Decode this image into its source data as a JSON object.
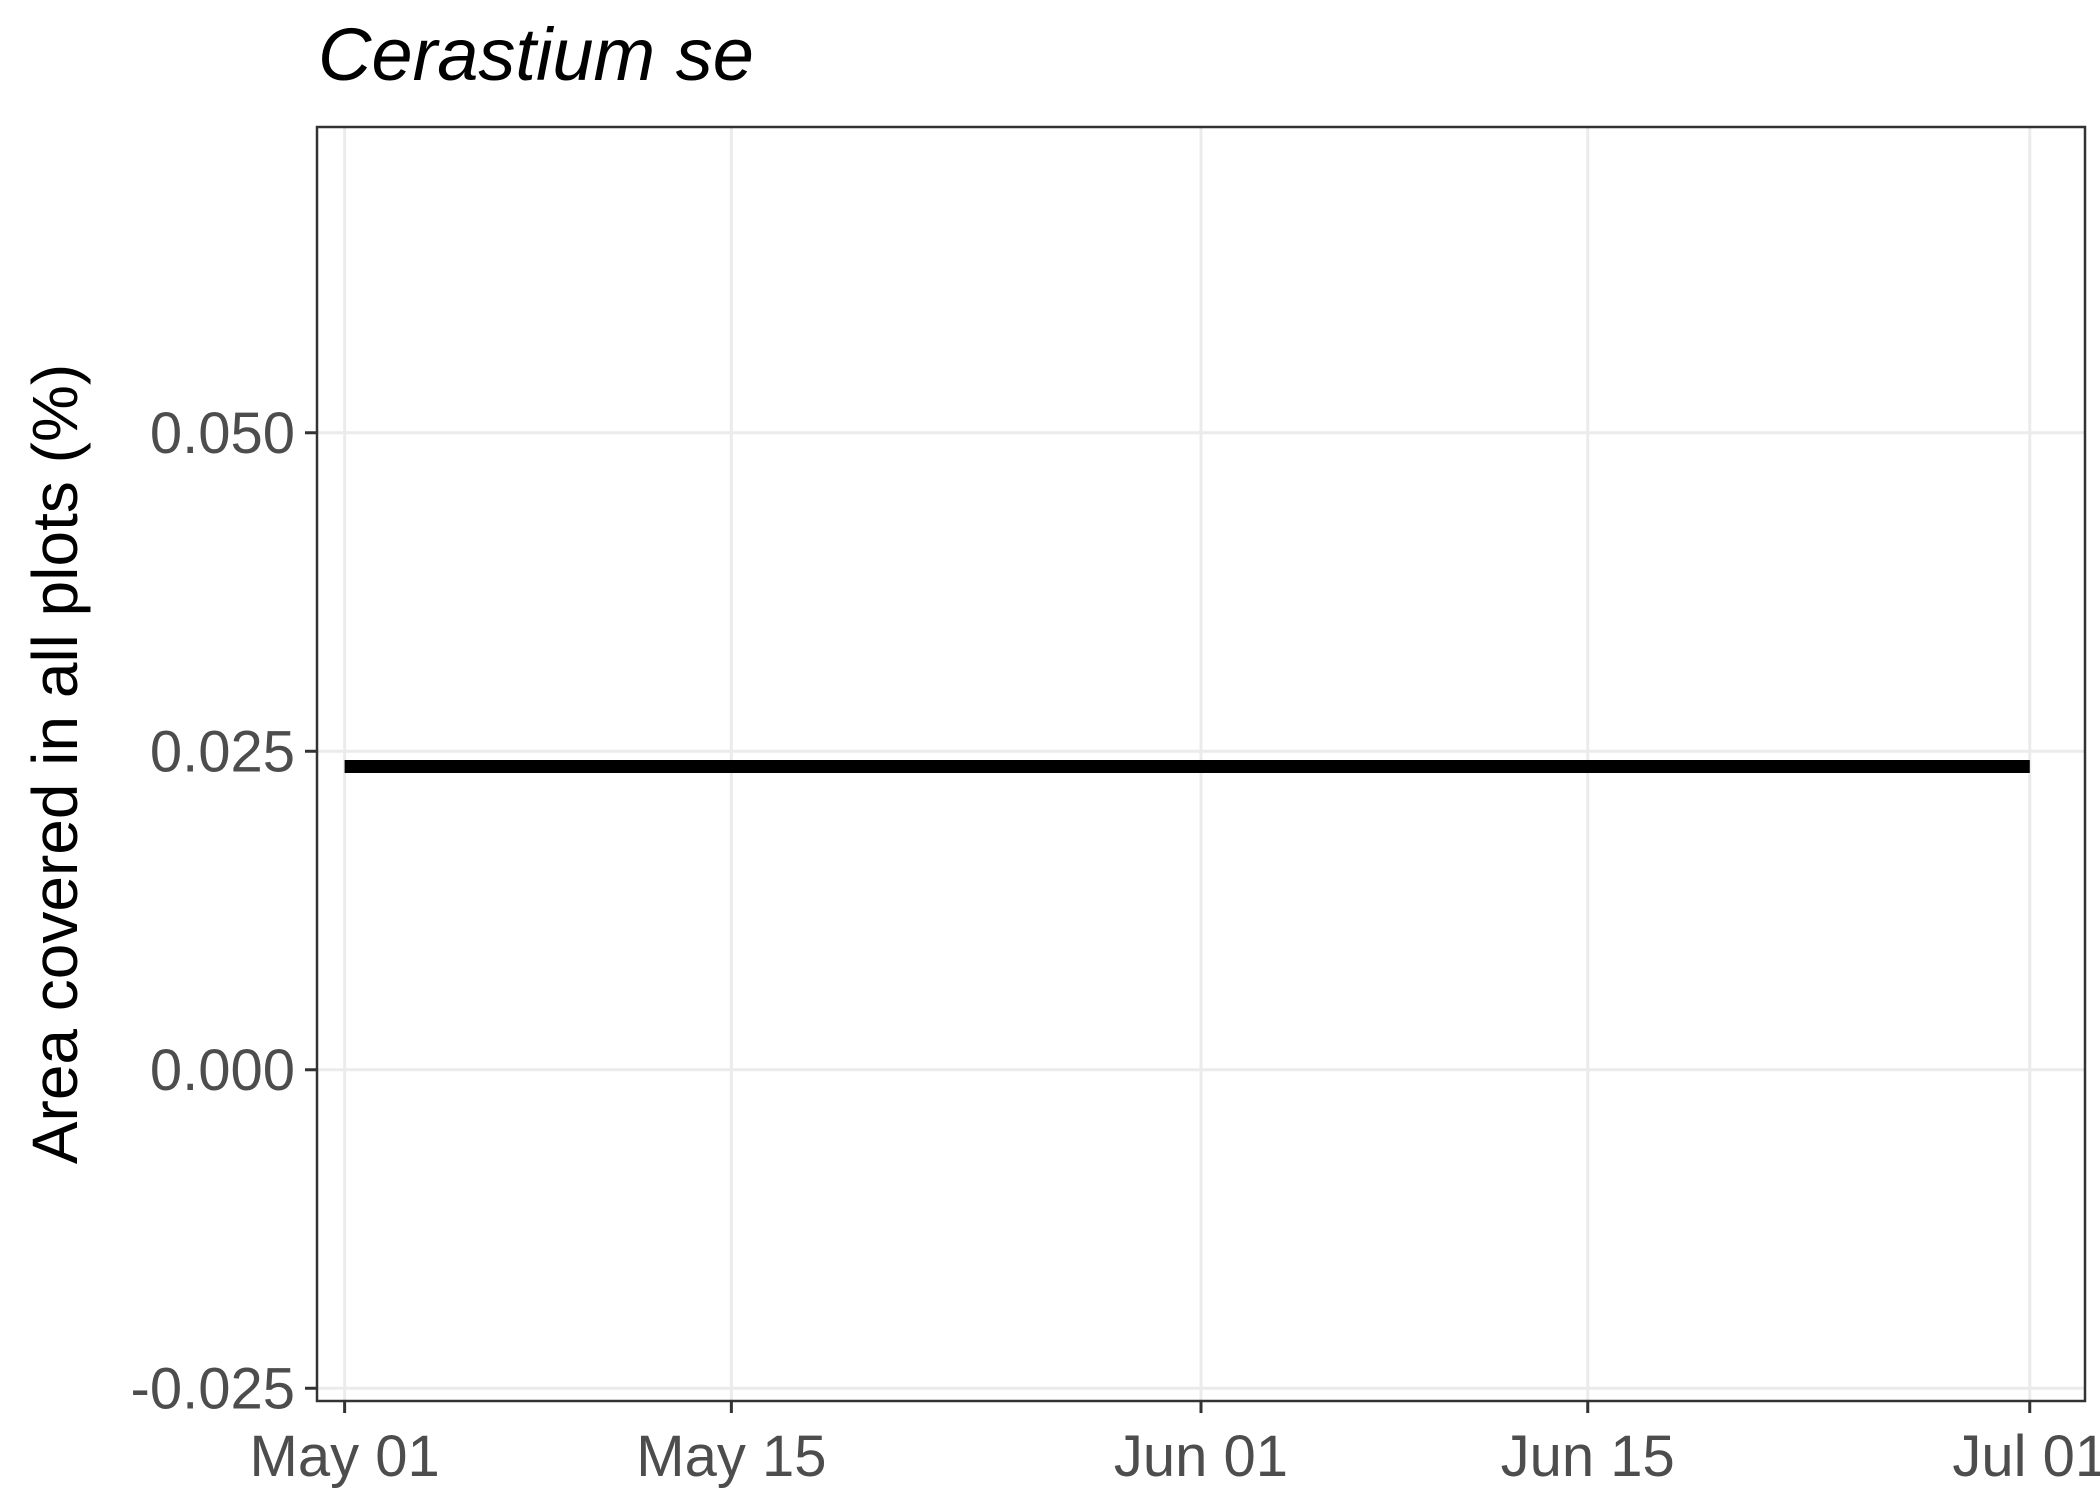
{
  "chart_data": {
    "type": "line",
    "title": "Cerastium se",
    "ylabel": "Area covered in all plots (%)",
    "xlabel": "",
    "x_axis": {
      "type": "date",
      "range": [
        "2023-04-30",
        "2023-07-03"
      ],
      "ticks": [
        {
          "date": "2023-05-01",
          "label": "May 01"
        },
        {
          "date": "2023-05-15",
          "label": "May 15"
        },
        {
          "date": "2023-06-01",
          "label": "Jun 01"
        },
        {
          "date": "2023-06-15",
          "label": "Jun 15"
        },
        {
          "date": "2023-07-01",
          "label": "Jul 01"
        }
      ]
    },
    "y_axis": {
      "range": [
        -0.026,
        0.074
      ],
      "ticks": [
        {
          "value": -0.025,
          "label": "-0.025"
        },
        {
          "value": 0.0,
          "label": "0.000"
        },
        {
          "value": 0.025,
          "label": "0.025"
        },
        {
          "value": 0.05,
          "label": "0.050"
        }
      ]
    },
    "grid": true,
    "series": [
      {
        "color": "#000000",
        "points": [
          {
            "x": "2023-05-01",
            "y": 0.0238
          },
          {
            "x": "2023-07-01",
            "y": 0.0238
          }
        ]
      }
    ]
  }
}
